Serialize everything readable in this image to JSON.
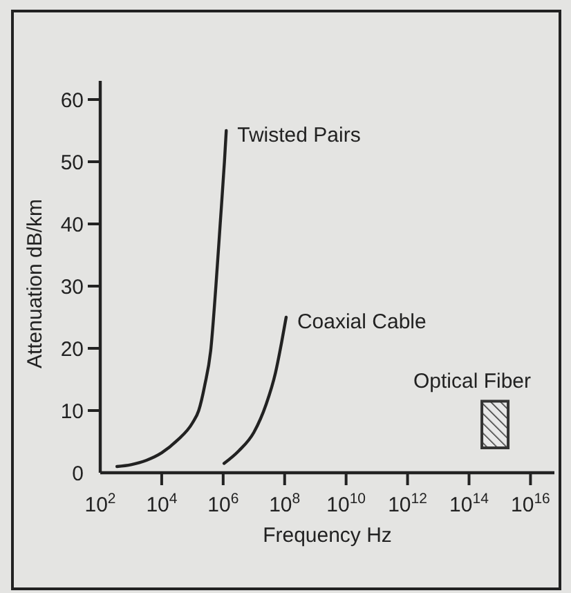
{
  "chart_data": {
    "type": "line",
    "xlabel": "Frequency Hz",
    "ylabel": "Attenuation dB/km",
    "log": "x",
    "grid": false,
    "marker": "none",
    "line_style": "solid",
    "xlim": [
      100,
      60000000000000000
    ],
    "ylim": [
      0,
      63
    ],
    "xticks": [
      {
        "value": 100,
        "label": "10$^{2}$"
      },
      {
        "value": 10000,
        "label": "10$^{4}$"
      },
      {
        "value": 1000000,
        "label": "10$^{6}$"
      },
      {
        "value": 100000000,
        "label": "10$^{8}$"
      },
      {
        "value": 10000000000,
        "label": "10$^{10}$"
      },
      {
        "value": 1000000000000,
        "label": "10$^{12}$"
      },
      {
        "value": 100000000000000,
        "label": "10$^{14}$"
      },
      {
        "value": 10000000000000000,
        "label": "10$^{16}$"
      }
    ],
    "yticks": [
      0,
      10,
      20,
      30,
      40,
      50,
      60
    ],
    "series": [
      {
        "name": "Twisted Pairs",
        "color": "#222222",
        "x": [
          350,
          1000,
          3200,
          10000,
          32000,
          100000,
          160000,
          250000,
          400000,
          580000,
          800000,
          1100000,
          1260000
        ],
        "values": [
          1,
          1.3,
          2,
          3.2,
          5.2,
          8,
          10,
          14,
          20,
          30,
          40,
          50,
          55
        ]
      },
      {
        "name": "Coaxial Cable",
        "color": "#222222",
        "x": [
          1070000,
          3200000,
          10000000,
          25000000,
          50000000,
          80000000,
          112000000
        ],
        "values": [
          1.5,
          3.5,
          6.5,
          11,
          16,
          21,
          25
        ]
      },
      {
        "name": "Optical Fiber",
        "type": "bar",
        "color": "#333333",
        "x": [
          700000000000000
        ],
        "base": [
          4
        ],
        "values": [
          7.5
        ]
      }
    ]
  }
}
